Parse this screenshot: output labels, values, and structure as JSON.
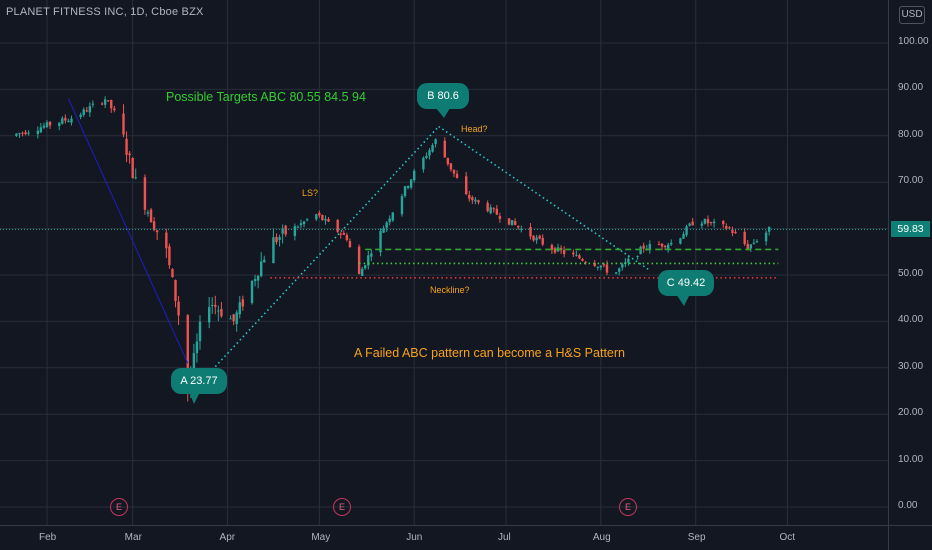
{
  "window": {
    "title": "PLANET FITNESS INC, 1D, Cboe BZX",
    "currency": "USD"
  },
  "colors": {
    "background": "#131722",
    "grid": "#2a2e39",
    "up": "#26a69a",
    "down": "#ef5350",
    "accent": "#0e7c72",
    "target_text": "#33cc33",
    "annotation_text": "#f7a21b"
  },
  "chart_data": {
    "type": "candlestick",
    "title": "PLANET FITNESS INC, 1D, Cboe BZX",
    "y_axis": {
      "ylim": [
        -3,
        106
      ],
      "ticks": [
        0,
        10,
        20,
        30,
        40,
        50,
        60,
        70,
        80,
        90,
        100
      ],
      "tick_labels": [
        "0.00",
        "10.00",
        "20.00",
        "30.00",
        "40.00",
        "50.00",
        "60.00",
        "70.00",
        "80.00",
        "90.00",
        "100.00"
      ]
    },
    "x_axis": {
      "tick_labels": [
        "Feb",
        "Mar",
        "Apr",
        "May",
        "Jun",
        "Jul",
        "Aug",
        "Sep",
        "Oct"
      ]
    },
    "last_price": "59.83",
    "grid": true,
    "approx_close_path": [
      {
        "x": "Jan 20",
        "y": 80
      },
      {
        "x": "Feb 10",
        "y": 84
      },
      {
        "x": "Feb 20",
        "y": 88
      },
      {
        "x": "Feb 24",
        "y": 84
      },
      {
        "x": "Mar 2",
        "y": 70
      },
      {
        "x": "Mar 12",
        "y": 55
      },
      {
        "x": "Mar 18",
        "y": 35
      },
      {
        "x": "Mar 19",
        "y": 25
      },
      {
        "x": "Mar 25",
        "y": 45
      },
      {
        "x": "Apr 3",
        "y": 40
      },
      {
        "x": "Apr 15",
        "y": 57
      },
      {
        "x": "Apr 30",
        "y": 63
      },
      {
        "x": "May 10",
        "y": 58
      },
      {
        "x": "May 14",
        "y": 50
      },
      {
        "x": "May 20",
        "y": 58
      },
      {
        "x": "Jun 1",
        "y": 72
      },
      {
        "x": "Jun 8",
        "y": 79
      },
      {
        "x": "Jun 18",
        "y": 67
      },
      {
        "x": "Jul 1",
        "y": 62
      },
      {
        "x": "Jul 15",
        "y": 56
      },
      {
        "x": "Aug 1",
        "y": 52
      },
      {
        "x": "Aug 5",
        "y": 50
      },
      {
        "x": "Aug 15",
        "y": 56
      },
      {
        "x": "Aug 25",
        "y": 57
      },
      {
        "x": "Sep 1",
        "y": 62
      },
      {
        "x": "Sep 12",
        "y": 60
      },
      {
        "x": "Sep 18",
        "y": 56
      },
      {
        "x": "Sep 25",
        "y": 59.8
      }
    ],
    "lines": [
      {
        "name": "A-B trend",
        "style": "dotted",
        "color": "#2bc6c6",
        "points": [
          {
            "x": "Mar 22",
            "y": 26
          },
          {
            "x": "Jun 9",
            "y": 82
          }
        ]
      },
      {
        "name": "B-C trend",
        "style": "dotted",
        "color": "#2bc6c6",
        "points": [
          {
            "x": "Jun 9",
            "y": 82
          },
          {
            "x": "Aug 17",
            "y": 51
          }
        ]
      },
      {
        "name": "Decline",
        "style": "solid",
        "color": "#1e1ec8",
        "points": [
          {
            "x": "Feb 8",
            "y": 88
          },
          {
            "x": "Mar 19",
            "y": 31
          }
        ]
      },
      {
        "name": "Neckline",
        "style": "dotted",
        "color": "#e53935",
        "y": 49.4,
        "from": "Apr 15",
        "to": "Sep 28"
      },
      {
        "name": "Support",
        "style": "dotted",
        "color": "#43d143",
        "y": 52.5,
        "from": "May 14",
        "to": "Sep 28"
      },
      {
        "name": "Level",
        "style": "dashed",
        "color": "#2fa82f",
        "y": 55.5,
        "from": "May 16",
        "to": "Sep 28"
      }
    ],
    "annotations": [
      {
        "id": "targets",
        "text": "Possible Targets ABC   80.55   84.5   94"
      },
      {
        "id": "ls",
        "text": "LS?"
      },
      {
        "id": "head",
        "text": "Head?"
      },
      {
        "id": "neckline",
        "text": "Neckline?"
      },
      {
        "id": "note",
        "text": "A Failed ABC pattern can become a H&S Pattern"
      }
    ],
    "callouts": [
      {
        "id": "A",
        "text": "A 23.77"
      },
      {
        "id": "B",
        "text": "B  80.6"
      },
      {
        "id": "C",
        "text": "C 49.42"
      }
    ],
    "events": [
      "E",
      "E",
      "E"
    ]
  }
}
